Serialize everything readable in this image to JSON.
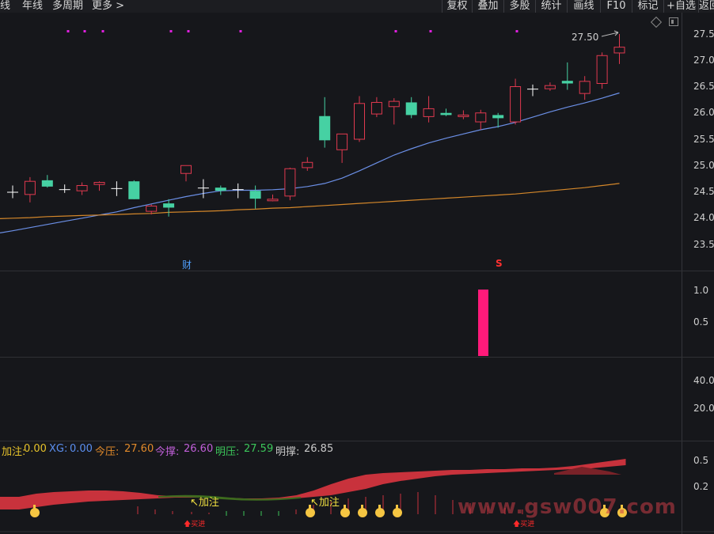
{
  "toolbar": {
    "left": [
      "线",
      "年线",
      "多周期",
      "更多 >"
    ],
    "right": [
      "复权",
      "叠加",
      "多股",
      "统计",
      "画线",
      "F10",
      "标记",
      "+自选",
      "返回"
    ]
  },
  "main_axis": [
    "27.5",
    "27.0",
    "26.5",
    "26.0",
    "25.5",
    "25.0",
    "24.5",
    "24.0",
    "23.5"
  ],
  "vol_axis": [
    "1.0",
    "0.5"
  ],
  "third_axis": [
    "40.0",
    "20.0"
  ],
  "bottom_axis": [
    "0.5",
    "0.2"
  ],
  "high_label": "27.50",
  "markers": {
    "cai": "财",
    "s": "S"
  },
  "indicators": {
    "jiazhu_label": "加注:",
    "jiazhu_value": "0.00",
    "xg_label": "XG:",
    "xg_value": "0.00",
    "jinya_label": "今压:",
    "jinya_value": "27.60",
    "jincheng_label": "今撑:",
    "jincheng_value": "26.60",
    "mingya_label": "明压:",
    "mingya_value": "27.59",
    "mingcheng_label": "明撑:",
    "mingcheng_value": "26.85"
  },
  "annotations": {
    "jiazhu1": "↖加注",
    "jiazhu2": "↖加注",
    "buy1": "买进",
    "buy2": "买进"
  },
  "watermark": "www.gsw007.com",
  "colors": {
    "up": "#e0394f",
    "down": "#46d1a3",
    "ma_short": "#6b8fe6",
    "ma_long": "#d4872a",
    "pink": "#ff1a7a",
    "magenta": "#e020e0"
  },
  "chart_data": {
    "type": "candlestick",
    "price_range": [
      23.3,
      27.6
    ],
    "candles": [
      {
        "o": 24.5,
        "h": 24.62,
        "l": 24.38,
        "c": 24.5
      },
      {
        "o": 24.45,
        "h": 24.78,
        "l": 24.3,
        "c": 24.7
      },
      {
        "o": 24.72,
        "h": 24.82,
        "l": 24.58,
        "c": 24.6
      },
      {
        "o": 24.55,
        "h": 24.64,
        "l": 24.48,
        "c": 24.55
      },
      {
        "o": 24.52,
        "h": 24.68,
        "l": 24.44,
        "c": 24.62
      },
      {
        "o": 24.64,
        "h": 24.7,
        "l": 24.52,
        "c": 24.68
      },
      {
        "o": 24.57,
        "h": 24.7,
        "l": 24.42,
        "c": 24.57
      },
      {
        "o": 24.7,
        "h": 24.72,
        "l": 24.36,
        "c": 24.36
      },
      {
        "o": 24.13,
        "h": 24.26,
        "l": 24.07,
        "c": 24.23
      },
      {
        "o": 24.28,
        "h": 24.36,
        "l": 24.03,
        "c": 24.2
      },
      {
        "o": 24.85,
        "h": 25.0,
        "l": 24.7,
        "c": 25.0
      },
      {
        "o": 24.58,
        "h": 24.74,
        "l": 24.38,
        "c": 24.58
      },
      {
        "o": 24.58,
        "h": 24.62,
        "l": 24.44,
        "c": 24.52
      },
      {
        "o": 24.55,
        "h": 24.66,
        "l": 24.38,
        "c": 24.55
      },
      {
        "o": 24.52,
        "h": 24.62,
        "l": 24.18,
        "c": 24.37
      },
      {
        "o": 24.33,
        "h": 24.45,
        "l": 24.32,
        "c": 24.36
      },
      {
        "o": 24.42,
        "h": 24.96,
        "l": 24.34,
        "c": 24.94
      },
      {
        "o": 24.96,
        "h": 25.16,
        "l": 24.9,
        "c": 25.06
      },
      {
        "o": 25.94,
        "h": 26.3,
        "l": 25.34,
        "c": 25.48
      },
      {
        "o": 25.3,
        "h": 25.6,
        "l": 25.05,
        "c": 25.6
      },
      {
        "o": 25.5,
        "h": 26.32,
        "l": 25.45,
        "c": 26.18
      },
      {
        "o": 25.98,
        "h": 26.3,
        "l": 25.92,
        "c": 26.2
      },
      {
        "o": 26.12,
        "h": 26.28,
        "l": 25.78,
        "c": 26.22
      },
      {
        "o": 26.2,
        "h": 26.3,
        "l": 25.9,
        "c": 25.96
      },
      {
        "o": 25.93,
        "h": 26.32,
        "l": 25.82,
        "c": 26.08
      },
      {
        "o": 26.0,
        "h": 26.08,
        "l": 25.94,
        "c": 25.96
      },
      {
        "o": 25.93,
        "h": 26.05,
        "l": 25.88,
        "c": 25.96
      },
      {
        "o": 25.83,
        "h": 26.06,
        "l": 25.68,
        "c": 26.0
      },
      {
        "o": 25.96,
        "h": 26.0,
        "l": 25.72,
        "c": 25.9
      },
      {
        "o": 25.83,
        "h": 26.65,
        "l": 25.78,
        "c": 26.5
      },
      {
        "o": 26.46,
        "h": 26.54,
        "l": 26.32,
        "c": 26.46
      },
      {
        "o": 26.46,
        "h": 26.58,
        "l": 26.42,
        "c": 26.52
      },
      {
        "o": 26.61,
        "h": 26.96,
        "l": 26.44,
        "c": 26.56
      },
      {
        "o": 26.37,
        "h": 26.7,
        "l": 26.25,
        "c": 26.6
      },
      {
        "o": 26.56,
        "h": 27.15,
        "l": 26.46,
        "c": 27.09
      },
      {
        "o": 27.14,
        "h": 27.5,
        "l": 26.93,
        "c": 27.25
      }
    ],
    "ma_short": [
      23.76,
      23.82,
      23.88,
      23.94,
      24.0,
      24.06,
      24.12,
      24.2,
      24.27,
      24.34,
      24.41,
      24.47,
      24.52,
      24.53,
      24.53,
      24.54,
      24.56,
      24.6,
      24.66,
      24.76,
      24.9,
      25.05,
      25.2,
      25.32,
      25.43,
      25.52,
      25.6,
      25.68,
      25.74,
      25.82,
      25.92,
      26.02,
      26.11,
      26.19,
      26.28,
      26.38
    ],
    "ma_long": [
      24.0,
      24.01,
      24.03,
      24.04,
      24.05,
      24.06,
      24.07,
      24.08,
      24.09,
      24.11,
      24.12,
      24.13,
      24.14,
      24.16,
      24.17,
      24.19,
      24.2,
      24.22,
      24.24,
      24.26,
      24.28,
      24.3,
      24.32,
      24.34,
      24.36,
      24.38,
      24.4,
      24.42,
      24.44,
      24.46,
      24.49,
      24.52,
      24.55,
      24.58,
      24.62,
      24.66
    ],
    "volume_bar": {
      "index": 28,
      "value": 1.0
    }
  }
}
